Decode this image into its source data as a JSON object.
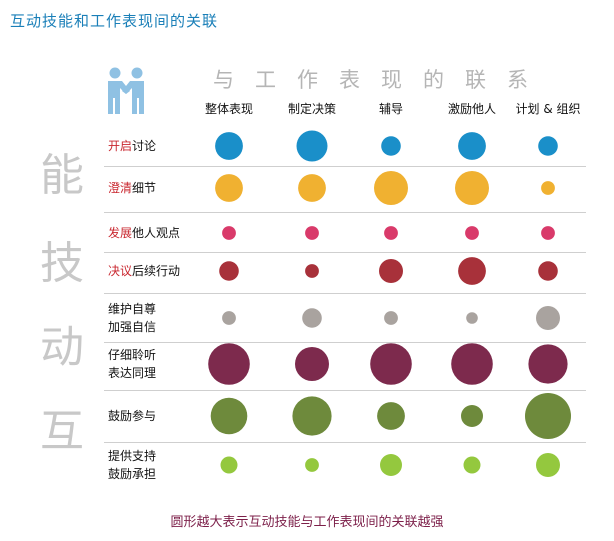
{
  "title": "互动技能和工作表现间的关联",
  "side_label": [
    "能",
    "技",
    "动",
    "互"
  ],
  "top_label": "与工作表现的联系",
  "footnote": "圆形越大表示互动技能与工作表现间的关联越强",
  "icon": "people-handshake-icon",
  "chart_data": {
    "type": "bubble-matrix",
    "columns": [
      "整体表现",
      "制定决策",
      "辅导",
      "激励他人",
      "计划 & 组织"
    ],
    "rows": [
      {
        "label": [
          "开启讨论"
        ],
        "highlight": "开启",
        "color": "#1a8fc9",
        "values": [
          4,
          5,
          2,
          4,
          2
        ]
      },
      {
        "label": [
          "澄清细节"
        ],
        "highlight": "澄清",
        "color": "#f0b131",
        "values": [
          4,
          4,
          6,
          6,
          1
        ]
      },
      {
        "label": [
          "发展他人观点"
        ],
        "highlight": "发展",
        "color": "#d93a6a",
        "values": [
          1,
          1,
          1,
          1,
          1
        ]
      },
      {
        "label": [
          "决议后续行动"
        ],
        "highlight": "决议",
        "color": "#a8313a",
        "values": [
          2,
          1,
          3,
          4,
          2
        ]
      },
      {
        "label": [
          "维护自尊",
          "加强自信"
        ],
        "highlight": "",
        "color": "#a9a39f",
        "values": [
          1,
          2,
          1,
          0.7,
          3
        ]
      },
      {
        "label": [
          "仔细聆听",
          "表达同理"
        ],
        "highlight": "",
        "color": "#7d2a4d",
        "values": [
          9,
          6,
          9,
          9,
          8
        ]
      },
      {
        "label": [
          "鼓励参与"
        ],
        "highlight": "",
        "color": "#6e8a3c",
        "values": [
          7,
          8,
          4,
          2.5,
          11
        ]
      },
      {
        "label": [
          "提供支持",
          "鼓励承担"
        ],
        "highlight": "",
        "color": "#94c83e",
        "values": [
          1.5,
          1,
          2.5,
          1.5,
          3
        ]
      }
    ]
  }
}
